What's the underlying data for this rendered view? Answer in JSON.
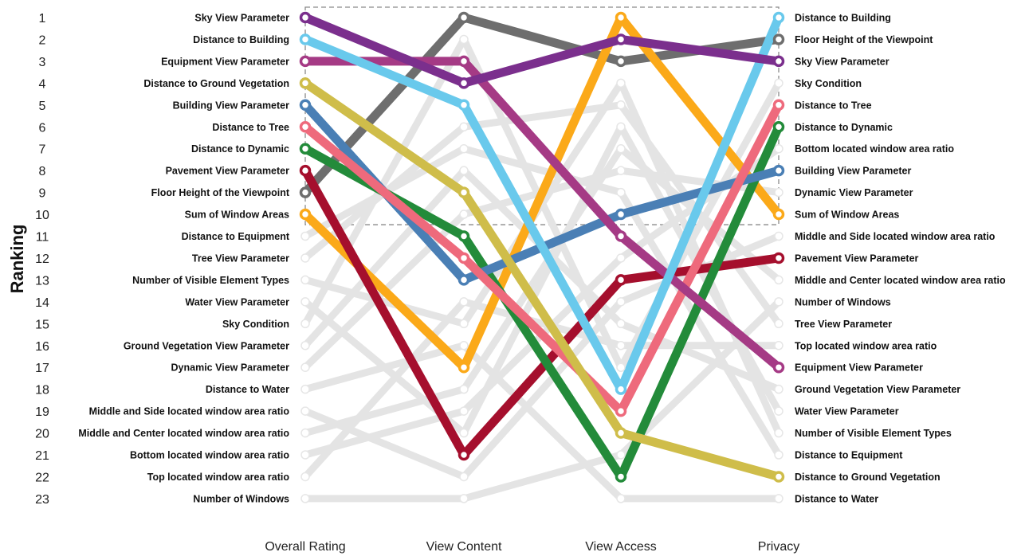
{
  "chart_data": {
    "type": "line",
    "chart_kind": "bump / slope ranking chart",
    "ylabel": "Ranking",
    "categories": [
      "Overall Rating",
      "View Content",
      "View Access",
      "Privacy"
    ],
    "rank_ticks": [
      "1",
      "2",
      "3",
      "4",
      "5",
      "6",
      "7",
      "8",
      "9",
      "10",
      "11",
      "12",
      "13",
      "14",
      "15",
      "16",
      "17",
      "18",
      "19",
      "20",
      "21",
      "22",
      "23"
    ],
    "ylim": [
      1,
      23
    ],
    "y_reversed": true,
    "top_box_ranks": [
      1,
      10
    ],
    "left_labels": [
      "Sky View Parameter",
      "Distance to Building",
      "Equipment View Parameter",
      "Distance to Ground Vegetation",
      "Building View Parameter",
      "Distance to Tree",
      "Distance to Dynamic",
      "Pavement View Parameter",
      "Floor Height of the Viewpoint",
      "Sum of Window Areas",
      "Distance to Equipment",
      "Tree View Parameter",
      "Number of Visible Element Types",
      "Water View Parameter",
      "Sky Condition",
      "Ground Vegetation View Parameter",
      "Dynamic View Parameter",
      "Distance to Water",
      "Middle and Side located window area ratio",
      "Middle and Center located window area ratio",
      "Bottom located window area ratio",
      "Top located window area ratio",
      "Number of Windows"
    ],
    "right_labels": [
      "Distance to Building",
      "Floor Height of the Viewpoint",
      "Sky View Parameter",
      "Sky Condition",
      "Distance to Tree",
      "Distance to Dynamic",
      "Bottom located window area ratio",
      "Building View Parameter",
      "Dynamic View Parameter",
      "Sum of Window Areas",
      "Middle and Side located window area ratio",
      "Pavement View Parameter",
      "Middle and Center located window area ratio",
      "Number of Windows",
      "Tree View Parameter",
      "Top located window area ratio",
      "Equipment View Parameter",
      "Ground Vegetation View Parameter",
      "Water View Parameter",
      "Number of Visible Element Types",
      "Distance to Equipment",
      "Distance to Ground Vegetation",
      "Distance to Water"
    ],
    "grid": false,
    "legend": "none",
    "highlight_series": [
      {
        "feature": "Floor Height of the Viewpoint",
        "color": "#6e6e6e",
        "ranks": [
          9,
          1,
          3,
          2
        ]
      },
      {
        "feature": "Sum of Window Areas",
        "color": "#fba919",
        "ranks": [
          10,
          17,
          1,
          10
        ]
      },
      {
        "feature": "Pavement View Parameter",
        "color": "#a50f2d",
        "ranks": [
          8,
          21,
          13,
          12
        ]
      },
      {
        "feature": "Distance to Dynamic",
        "color": "#238b3a",
        "ranks": [
          7,
          11,
          22,
          6
        ]
      },
      {
        "feature": "Building View Parameter",
        "color": "#4a7fb5",
        "ranks": [
          5,
          13,
          10,
          8
        ]
      },
      {
        "feature": "Distance to Tree",
        "color": "#ee6a7c",
        "ranks": [
          6,
          12,
          19,
          5
        ]
      },
      {
        "feature": "Equipment View Parameter",
        "color": "#a53a85",
        "ranks": [
          3,
          3,
          11,
          17
        ]
      },
      {
        "feature": "Distance to Ground Vegetation",
        "color": "#cfbd4a",
        "ranks": [
          4,
          9,
          20,
          22
        ]
      },
      {
        "feature": "Distance to Building",
        "color": "#69c9ec",
        "ranks": [
          2,
          5,
          18,
          1
        ]
      },
      {
        "feature": "Sky View Parameter",
        "color": "#7b2f8d",
        "ranks": [
          1,
          4,
          2,
          3
        ]
      }
    ],
    "background_series": [
      {
        "feature": "Distance to Equipment",
        "ranks": [
          11,
          7,
          9,
          21
        ]
      },
      {
        "feature": "Tree View Parameter",
        "ranks": [
          12,
          6,
          5,
          15
        ]
      },
      {
        "feature": "Number of Visible Element Types",
        "ranks": [
          13,
          15,
          4,
          20
        ]
      },
      {
        "feature": "Water View Parameter",
        "ranks": [
          14,
          20,
          6,
          19
        ]
      },
      {
        "feature": "Sky Condition",
        "ranks": [
          15,
          2,
          17,
          4
        ]
      },
      {
        "feature": "Ground Vegetation View Parameter",
        "ranks": [
          16,
          8,
          15,
          18
        ]
      },
      {
        "feature": "Dynamic View Parameter",
        "ranks": [
          17,
          10,
          8,
          9
        ]
      },
      {
        "feature": "Distance to Water",
        "ranks": [
          18,
          16,
          23,
          23
        ]
      },
      {
        "feature": "Middle and Side located window area ratio",
        "ranks": [
          19,
          22,
          14,
          11
        ]
      },
      {
        "feature": "Middle and Center located window area ratio",
        "ranks": [
          20,
          18,
          7,
          13
        ]
      },
      {
        "feature": "Bottom located window area ratio",
        "ranks": [
          21,
          19,
          12,
          7
        ]
      },
      {
        "feature": "Top located window area ratio",
        "ranks": [
          22,
          14,
          16,
          16
        ]
      },
      {
        "feature": "Number of Windows",
        "ranks": [
          23,
          23,
          21,
          14
        ]
      }
    ],
    "background_color": "#e4e4e4"
  }
}
